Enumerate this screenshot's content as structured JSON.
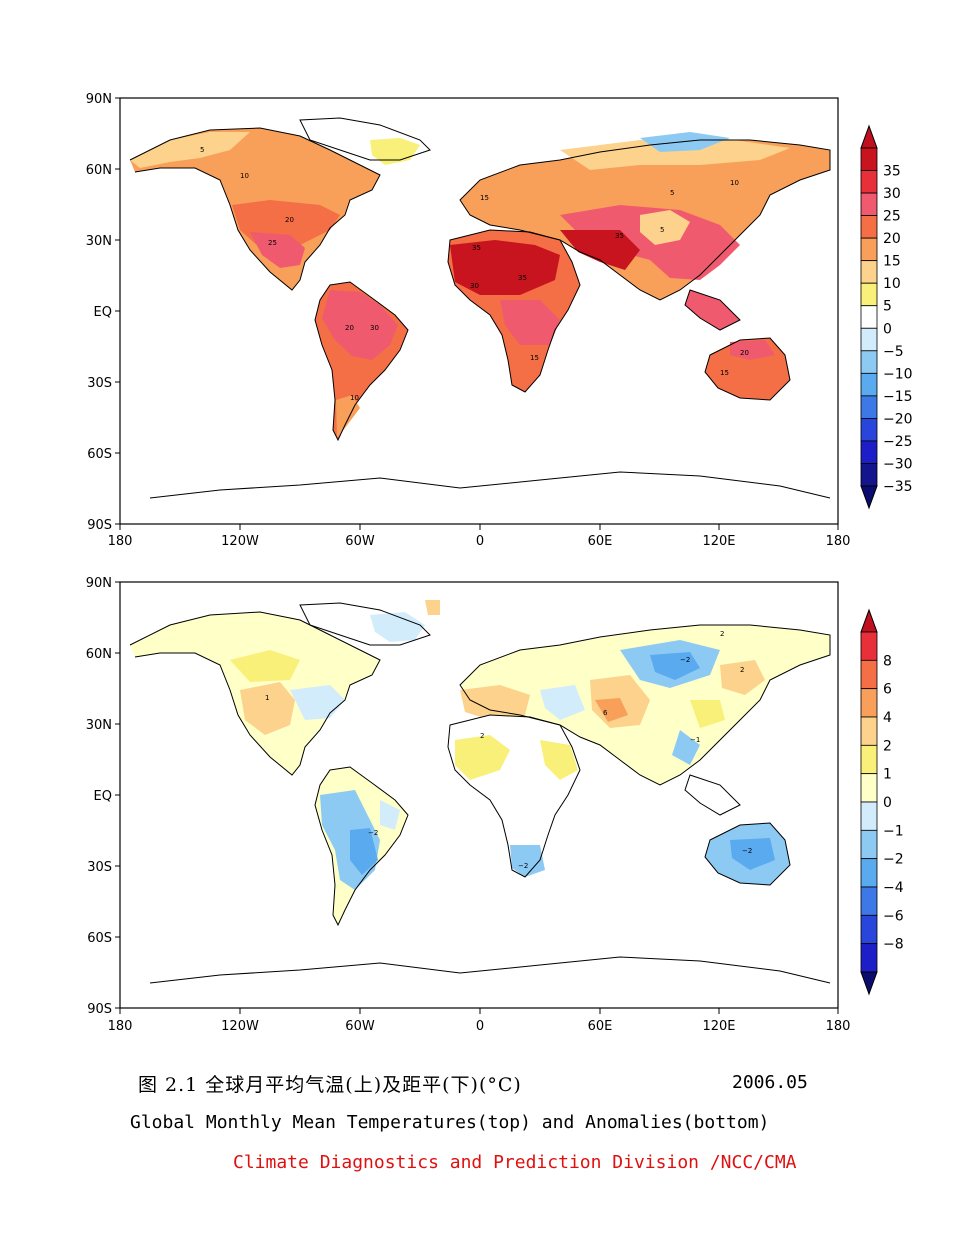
{
  "top_map": {
    "lat_ticks": [
      "90N",
      "60N",
      "30N",
      "EQ",
      "30S",
      "60S",
      "90S"
    ],
    "lon_ticks": [
      "180",
      "120W",
      "60W",
      "0",
      "60E",
      "120E",
      "180"
    ],
    "colorbar": {
      "labels": [
        "35",
        "30",
        "25",
        "20",
        "15",
        "10",
        "5",
        "0",
        "−5",
        "−10",
        "−15",
        "−20",
        "−25",
        "−30",
        "−35"
      ],
      "colors": [
        "#c8141e",
        "#e8303a",
        "#f05a6e",
        "#f46e46",
        "#f8a05a",
        "#fcd28c",
        "#f8f078",
        "#ffffff",
        "#d2ecfc",
        "#8ccaf4",
        "#5aaaf0",
        "#3c78e6",
        "#2846dc",
        "#1e1ec8",
        "#14148c"
      ],
      "top_arrow_color": "#c01020",
      "bottom_arrow_color": "#0c0c6e"
    }
  },
  "bottom_map": {
    "lat_ticks": [
      "90N",
      "60N",
      "30N",
      "EQ",
      "30S",
      "60S",
      "90S"
    ],
    "lon_ticks": [
      "180",
      "120W",
      "60W",
      "0",
      "60E",
      "120E",
      "180"
    ],
    "colorbar": {
      "labels": [
        "8",
        "6",
        "4",
        "2",
        "1",
        "0",
        "−1",
        "−2",
        "−4",
        "−6",
        "−8"
      ],
      "colors": [
        "#e8303a",
        "#f46e46",
        "#f8a05a",
        "#fcd28c",
        "#f8f078",
        "#ffffc8",
        "#d2ecfc",
        "#8ccaf4",
        "#5aaaf0",
        "#3c78e6",
        "#2846dc",
        "#1e1ec8"
      ],
      "top_arrow_color": "#c01020",
      "bottom_arrow_color": "#0c0c6e"
    }
  },
  "captions": {
    "chinese_title": "图 2.1  全球月平均气温(上)及距平(下)(°C)",
    "date": "2006.05",
    "english_title": "Global Monthly Mean Temperatures(top) and Anomalies(bottom)",
    "organization": "Climate Diagnostics and Prediction Division /NCC/CMA"
  }
}
